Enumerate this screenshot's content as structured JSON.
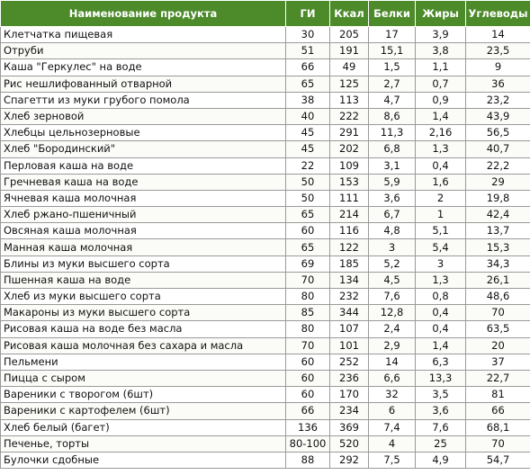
{
  "header": {
    "product": "Наименование продукта",
    "gi": "ГИ",
    "kcal": "Ккал",
    "protein": "Белки",
    "fat": "Жиры",
    "carbs": "Углеводы"
  },
  "rows": [
    [
      "Клетчатка пищевая",
      "30",
      "205",
      "17",
      "3,9",
      "14"
    ],
    [
      "Отруби",
      "51",
      "191",
      "15,1",
      "3,8",
      "23,5"
    ],
    [
      "Каша \"Геркулес\" на воде",
      "66",
      "49",
      "1,5",
      "1,1",
      "9"
    ],
    [
      "Рис нешлифованный отварной",
      "65",
      "125",
      "2,7",
      "0,7",
      "36"
    ],
    [
      "Спагетти из муки грубого помола",
      "38",
      "113",
      "4,7",
      "0,9",
      "23,2"
    ],
    [
      "Хлеб зерновой",
      "40",
      "222",
      "8,6",
      "1,4",
      "43,9"
    ],
    [
      "Хлебцы цельнозерновые",
      "45",
      "291",
      "11,3",
      "2,16",
      "56,5"
    ],
    [
      "Хлеб \"Бородинский\"",
      "45",
      "202",
      "6,8",
      "1,3",
      "40,7"
    ],
    [
      "Перловая каша на воде",
      "22",
      "109",
      "3,1",
      "0,4",
      "22,2"
    ],
    [
      "Гречневая каша на воде",
      "50",
      "153",
      "5,9",
      "1,6",
      "29"
    ],
    [
      "Ячневая каша молочная",
      "50",
      "111",
      "3,6",
      "2",
      "19,8"
    ],
    [
      "Хлеб ржано-пшеничный",
      "65",
      "214",
      "6,7",
      "1",
      "42,4"
    ],
    [
      "Овсяная каша молочная",
      "60",
      "116",
      "4,8",
      "5,1",
      "13,7"
    ],
    [
      "Манная каша молочная",
      "65",
      "122",
      "3",
      "5,4",
      "15,3"
    ],
    [
      "Блины из муки высшего сорта",
      "69",
      "185",
      "5,2",
      "3",
      "34,3"
    ],
    [
      "Пшенная каша на воде",
      "70",
      "134",
      "4,5",
      "1,3",
      "26,1"
    ],
    [
      "Хлеб из муки высшего сорта",
      "80",
      "232",
      "7,6",
      "0,8",
      "48,6"
    ],
    [
      "Макароны из муки высшего сорта",
      "85",
      "344",
      "12,8",
      "0,4",
      "70"
    ],
    [
      "Рисовая каша на воде без масла",
      "80",
      "107",
      "2,4",
      "0,4",
      "63,5"
    ],
    [
      "Рисовая каша молочная без сахара и масла",
      "70",
      "101",
      "2,9",
      "1,4",
      "20"
    ],
    [
      "Пельмени",
      "60",
      "252",
      "14",
      "6,3",
      "37"
    ],
    [
      "Пицца с сыром",
      "60",
      "236",
      "6,6",
      "13,3",
      "22,7"
    ],
    [
      "Вареники с творогом (6шт)",
      "60",
      "170",
      "32",
      "3,5",
      "81"
    ],
    [
      "Вареники с картофелем (6шт)",
      "66",
      "234",
      "6",
      "3,6",
      "66"
    ],
    [
      "Хлеб белый (багет)",
      "136",
      "369",
      "7,4",
      "7,6",
      "68,1"
    ],
    [
      "Печенье, торты",
      "80-100",
      "520",
      "4",
      "25",
      "70"
    ],
    [
      "Булочки сдобные",
      "88",
      "292",
      "7,5",
      "4,9",
      "54,7"
    ]
  ]
}
